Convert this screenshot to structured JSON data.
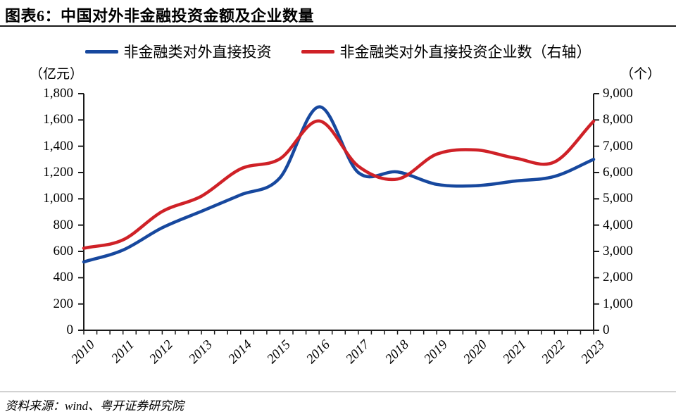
{
  "title": "图表6：中国对外非金融投资金额及企业数量",
  "source": "资料来源：wind、粤开证券研究院",
  "colors": {
    "blue_series": "#17489e",
    "red_series": "#cf2127",
    "axis": "#1a1a1a"
  },
  "chart_data": {
    "type": "line",
    "title": "中国对外非金融投资金额及企业数量",
    "smooth": true,
    "grid": "off",
    "legend_position": "top",
    "x_categories": [
      "2010",
      "2011",
      "2012",
      "2013",
      "2014",
      "2015",
      "2016",
      "2017",
      "2018",
      "2019",
      "2020",
      "2021",
      "2022",
      "2023"
    ],
    "series": [
      {
        "name": "非金融类对外直接投资",
        "axis": "left",
        "color": "#17489e",
        "values": [
          520,
          610,
          780,
          905,
          1030,
          1160,
          1700,
          1200,
          1205,
          1110,
          1100,
          1135,
          1170,
          1300
        ]
      },
      {
        "name": "非金融类对外直接投资企业数（右轴）",
        "axis": "right",
        "color": "#cf2127",
        "values": [
          3120,
          3440,
          4520,
          5100,
          6140,
          6520,
          7960,
          6240,
          5750,
          6700,
          6860,
          6550,
          6400,
          7950
        ]
      }
    ],
    "left_axis": {
      "unit": "（亿元）",
      "min": 0,
      "max": 1800,
      "tick_step": 200,
      "tick_labels": [
        "1,800",
        "1,600",
        "1,400",
        "1,200",
        "1,000",
        "800",
        "600",
        "400",
        "200",
        "0"
      ]
    },
    "right_axis": {
      "unit": "（个）",
      "min": 0,
      "max": 9000,
      "tick_step": 1000,
      "tick_labels": [
        "9,000",
        "8,000",
        "7,000",
        "6,000",
        "5,000",
        "4,000",
        "3,000",
        "2,000",
        "1,000",
        "0"
      ]
    }
  }
}
